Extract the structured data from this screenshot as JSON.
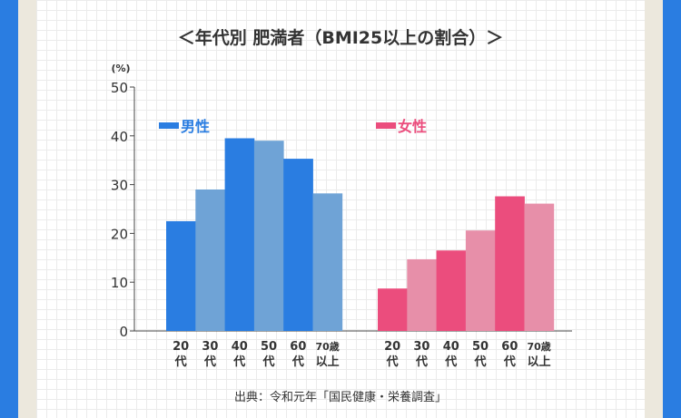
{
  "chart_data": {
    "type": "bar",
    "title": "＜年代別 肥満者（BMI25以上の割合）＞",
    "unit_label": "(%)",
    "ylim": [
      0,
      50
    ],
    "yticks": [
      0,
      10,
      20,
      30,
      40,
      50
    ],
    "grid": true,
    "categories": [
      [
        "20",
        "代"
      ],
      [
        "30",
        "代"
      ],
      [
        "40",
        "代"
      ],
      [
        "50",
        "代"
      ],
      [
        "60",
        "代"
      ],
      [
        "70歳",
        "以上"
      ]
    ],
    "series": [
      {
        "name": "男性",
        "values": [
          22.5,
          29.0,
          39.5,
          39.0,
          35.3,
          28.2
        ],
        "colors": [
          "#2a7de1",
          "#6fa3d6"
        ],
        "label_color": "#2a7de1"
      },
      {
        "name": "女性",
        "values": [
          8.7,
          14.7,
          16.5,
          20.6,
          27.6,
          26.1
        ],
        "colors": [
          "#eb4d7d",
          "#e78fa9"
        ],
        "label_color": "#eb4d7d"
      }
    ],
    "source": "出典：令和元年「国民健康・栄養調査」"
  }
}
